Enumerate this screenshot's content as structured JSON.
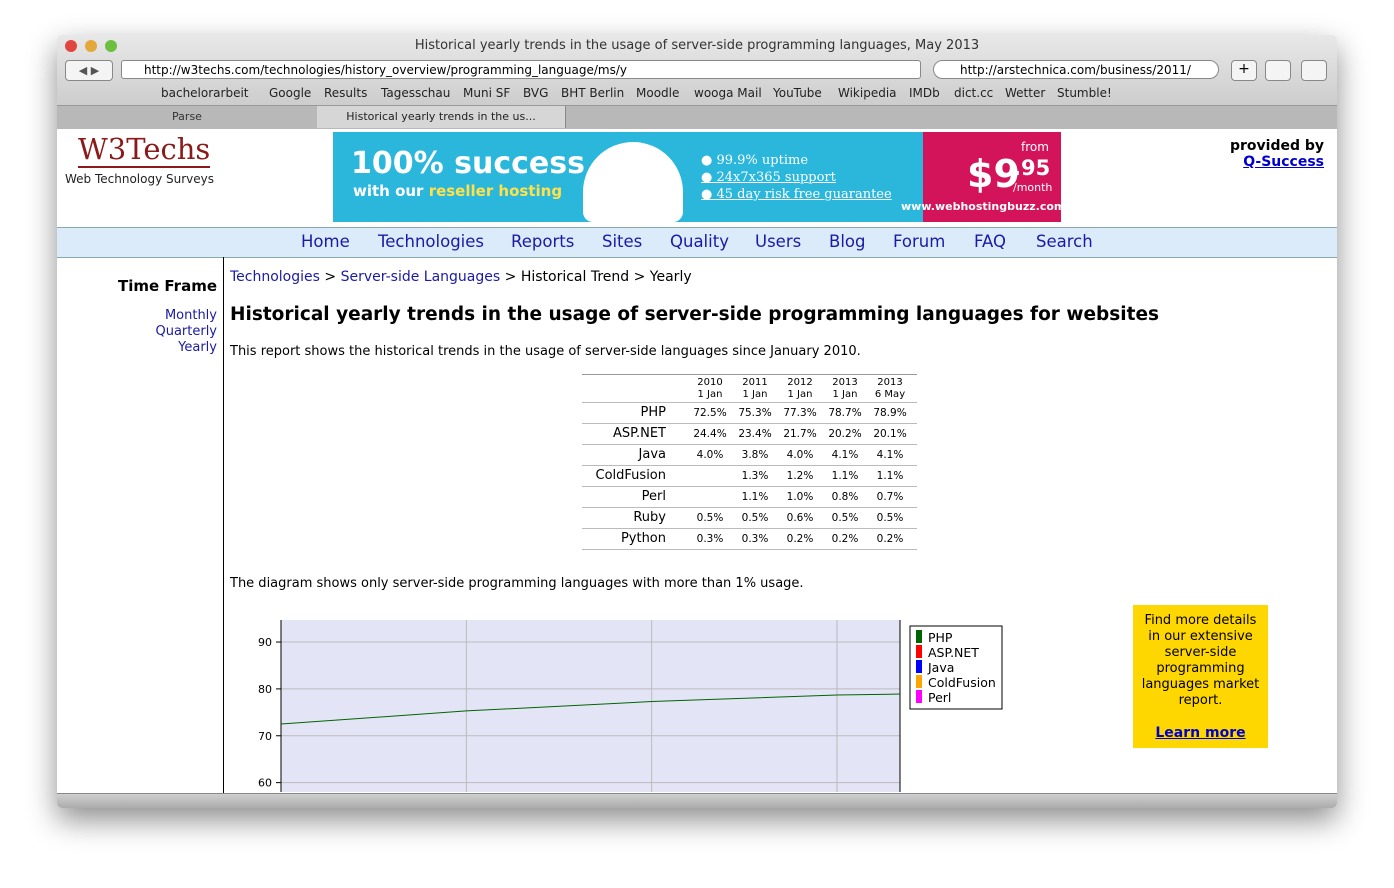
{
  "window": {
    "title": "Historical yearly trends in the usage of server-side programming languages, May 2013",
    "url": "http://w3techs.com/technologies/history_overview/programming_language/ms/y",
    "search": "http://arstechnica.com/business/2011/",
    "bookmarks": [
      "bachelorarbeit",
      "Google",
      "Results",
      "Tagesschau",
      "Muni SF",
      "BVG",
      "BHT Berlin",
      "Moodle",
      "wooga Mail",
      "YouTube",
      "Wikipedia",
      "IMDb",
      "dict.cc",
      "Wetter",
      "Stumble!"
    ],
    "tabs": [
      "Parse",
      "Historical yearly trends in the us..."
    ]
  },
  "header": {
    "logo": "W3Techs",
    "tagline": "Web Technology Surveys",
    "provided": "provided by",
    "provider": "Q-Success",
    "ad": {
      "headline": "100% success",
      "sub1": "with our",
      "sub2": "reseller hosting",
      "points": [
        "99.9% uptime",
        "24x7x365 support",
        "45 day risk free guarantee"
      ],
      "from": "from",
      "price": "$9",
      "cents": ".95",
      "per": "/month",
      "site": "www.webhostingbuzz.com"
    }
  },
  "nav": [
    "Home",
    "Technologies",
    "Reports",
    "Sites",
    "Quality",
    "Users",
    "Blog",
    "Forum",
    "FAQ",
    "Search"
  ],
  "sidebar": {
    "title": "Time Frame",
    "links": [
      "Monthly",
      "Quarterly",
      "Yearly"
    ]
  },
  "breadcrumb": [
    "Technologies",
    "Server-side Languages",
    "Historical Trend",
    "Yearly"
  ],
  "heading": "Historical yearly trends in the usage of server-side programming languages for websites",
  "intro": "This report shows the historical trends in the usage of server-side languages since January 2010.",
  "table": {
    "columns": [
      {
        "year": "2010",
        "date": "1 Jan"
      },
      {
        "year": "2011",
        "date": "1 Jan"
      },
      {
        "year": "2012",
        "date": "1 Jan"
      },
      {
        "year": "2013",
        "date": "1 Jan"
      },
      {
        "year": "2013",
        "date": "6 May"
      }
    ],
    "rows": [
      {
        "label": "PHP",
        "cells": [
          "72.5%",
          "75.3%",
          "77.3%",
          "78.7%",
          "78.9%"
        ]
      },
      {
        "label": "ASP.NET",
        "cells": [
          "24.4%",
          "23.4%",
          "21.7%",
          "20.2%",
          "20.1%"
        ]
      },
      {
        "label": "Java",
        "cells": [
          "4.0%",
          "3.8%",
          "4.0%",
          "4.1%",
          "4.1%"
        ]
      },
      {
        "label": "ColdFusion",
        "cells": [
          null,
          "1.3%",
          "1.2%",
          "1.1%",
          "1.1%"
        ]
      },
      {
        "label": "Perl",
        "cells": [
          null,
          "1.1%",
          "1.0%",
          "0.8%",
          "0.7%"
        ]
      },
      {
        "label": "Ruby",
        "cells": [
          "0.5%",
          "0.5%",
          "0.6%",
          "0.5%",
          "0.5%"
        ]
      },
      {
        "label": "Python",
        "cells": [
          "0.3%",
          "0.3%",
          "0.2%",
          "0.2%",
          "0.2%"
        ]
      }
    ]
  },
  "diagram_note": "The diagram shows only server-side programming languages with more than 1% usage.",
  "chart": {
    "type": "line",
    "x": [
      2010,
      2011,
      2012,
      2013,
      2013.34
    ],
    "xlim": [
      2010,
      2013.34
    ],
    "xticks": [
      2011,
      2012,
      2013
    ],
    "ylim": [
      58,
      94.7
    ],
    "yticks": [
      60,
      70,
      80,
      90
    ],
    "series": [
      {
        "name": "PHP",
        "color": "#006400",
        "values": [
          72.5,
          75.3,
          77.3,
          78.7,
          78.9
        ]
      }
    ],
    "legend": [
      {
        "name": "PHP",
        "color": "#006400"
      },
      {
        "name": "ASP.NET",
        "color": "#ff0000"
      },
      {
        "name": "Java",
        "color": "#0000ff"
      },
      {
        "name": "ColdFusion",
        "color": "#ffa500"
      },
      {
        "name": "Perl",
        "color": "#ff00ff"
      }
    ]
  },
  "promo": {
    "text": "Find more details in our extensive server-side programming languages market report.",
    "link": "Learn more"
  }
}
